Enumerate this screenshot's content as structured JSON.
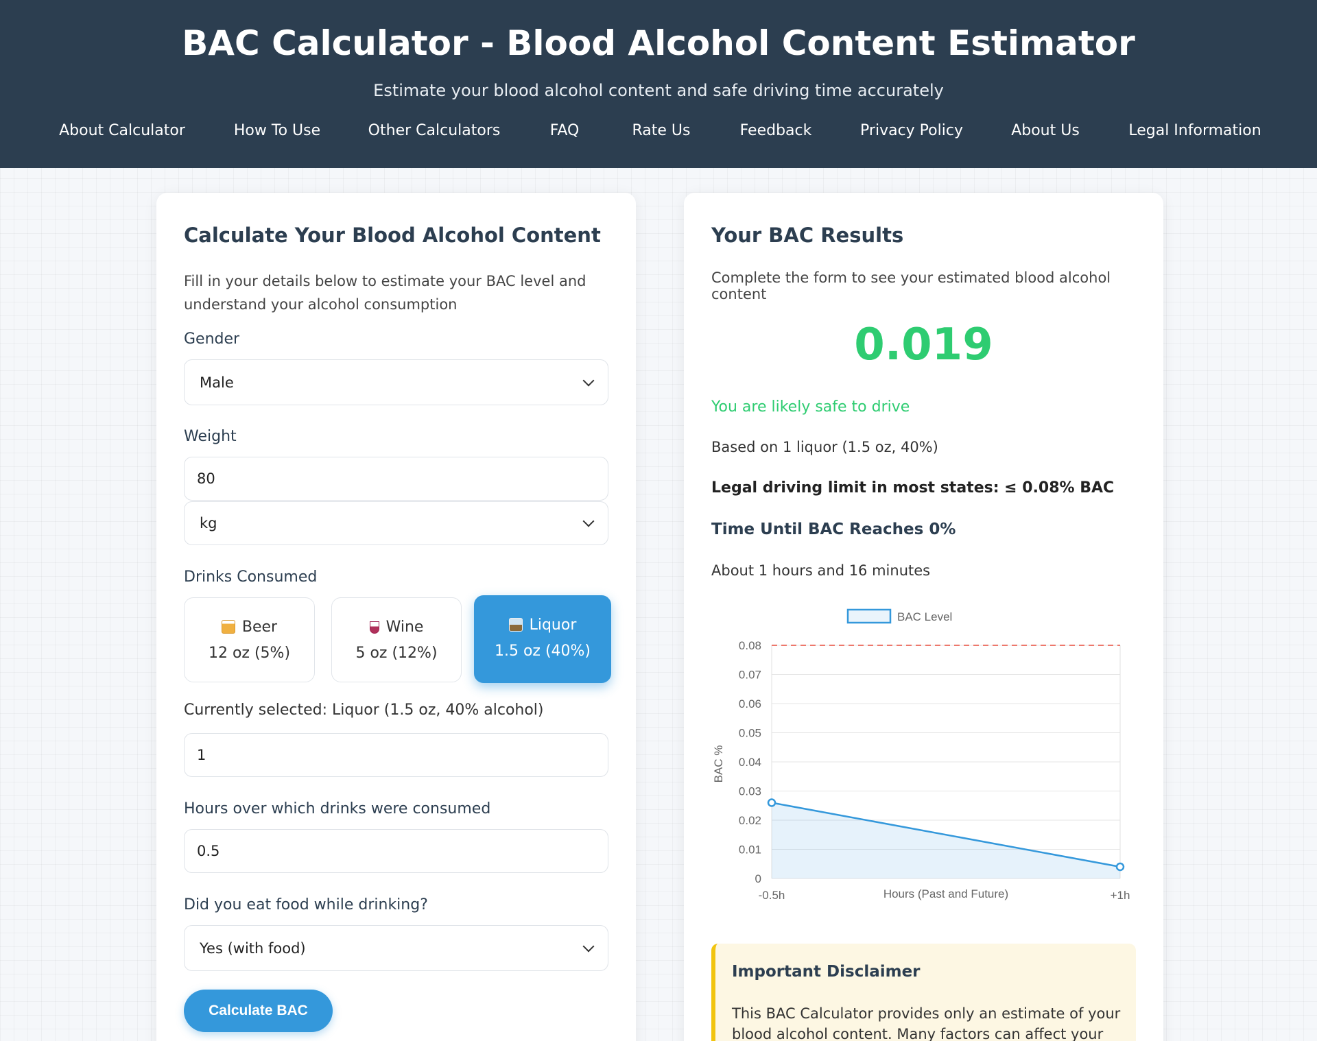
{
  "header": {
    "title": "BAC Calculator - Blood Alcohol Content Estimator",
    "subtitle": "Estimate your blood alcohol content and safe driving time accurately"
  },
  "nav": [
    "About Calculator",
    "How To Use",
    "Other Calculators",
    "FAQ",
    "Rate Us",
    "Feedback",
    "Privacy Policy",
    "About Us",
    "Legal Information"
  ],
  "form": {
    "title": "Calculate Your Blood Alcohol Content",
    "intro": "Fill in your details below to estimate your BAC level and understand your alcohol consumption",
    "gender_label": "Gender",
    "gender_value": "Male",
    "weight_label": "Weight",
    "weight_value": "80",
    "weight_unit": "kg",
    "drinks_label": "Drinks Consumed",
    "drinks": [
      {
        "name": "Beer",
        "size": "12 oz (5%)",
        "icon": "beer-icon"
      },
      {
        "name": "Wine",
        "size": "5 oz (12%)",
        "icon": "wine-icon"
      },
      {
        "name": "Liquor",
        "size": "1.5 oz (40%)",
        "icon": "liquor-icon"
      }
    ],
    "selected_drink_index": 2,
    "currently_selected": "Currently selected: Liquor (1.5 oz, 40% alcohol)",
    "drink_count": "1",
    "hours_label": "Hours over which drinks were consumed",
    "hours_value": "0.5",
    "food_label": "Did you eat food while drinking?",
    "food_value": "Yes (with food)",
    "submit_label": "Calculate BAC"
  },
  "results": {
    "title": "Your BAC Results",
    "intro": "Complete the form to see your estimated blood alcohol content",
    "bac_value": "0.019",
    "status": "You are likely safe to drive",
    "based_on": "Based on 1 liquor (1.5 oz, 40%)",
    "legal_limit": "Legal driving limit in most states: ≤ 0.08% BAC",
    "time_heading": "Time Until BAC Reaches 0%",
    "time_value": "About 1 hours and 16 minutes",
    "disclaimer_title": "Important Disclaimer",
    "disclaimer_text": "This BAC Calculator provides only an estimate of your blood alcohol content. Many factors can affect your actual"
  },
  "colors": {
    "header_bg": "#2c3e50",
    "accent": "#3498db",
    "safe": "#2ecc71",
    "limit_line": "#e74c3c"
  },
  "chart_data": {
    "type": "area",
    "legend": "BAC Level",
    "legend_position": "top",
    "xlabel": "Hours (Past and Future)",
    "ylabel": "BAC %",
    "categories": [
      "-0.5h",
      "+1h"
    ],
    "series": [
      {
        "name": "BAC Level",
        "values": [
          0.026,
          0.004
        ]
      }
    ],
    "ylim": [
      0,
      0.08
    ],
    "yticks": [
      "0",
      "0.01",
      "0.02",
      "0.03",
      "0.04",
      "0.05",
      "0.06",
      "0.07",
      "0.08"
    ],
    "limit_line": 0.08,
    "grid": true
  }
}
